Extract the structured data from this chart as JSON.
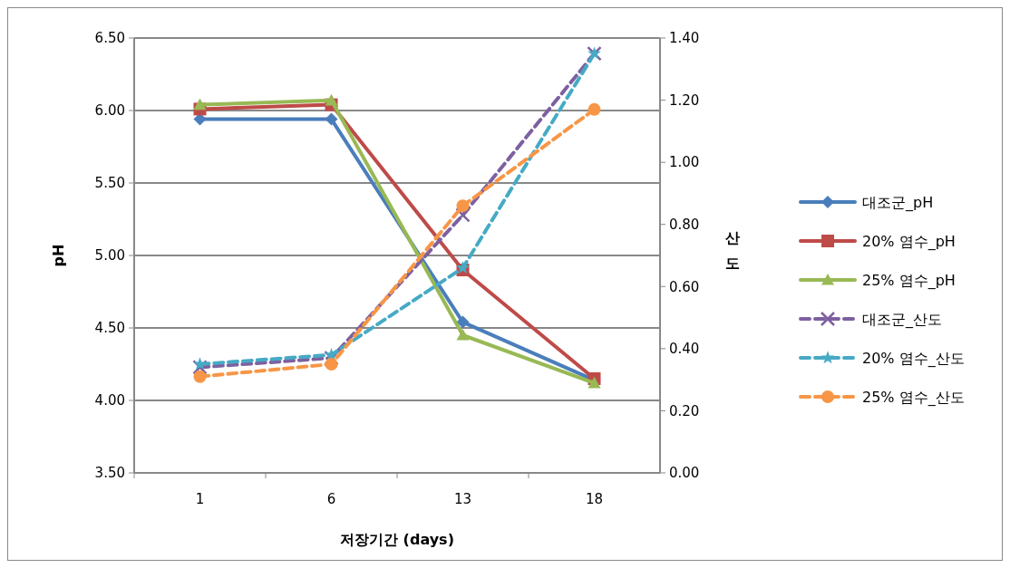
{
  "chart_data": {
    "type": "line",
    "categories": [
      "1",
      "6",
      "13",
      "18"
    ],
    "xlabel": "저장기간 (days)",
    "ylabel": "pH",
    "y2label": "산도",
    "ylim": [
      3.5,
      6.5
    ],
    "yticks": [
      {
        "value": 3.5,
        "label": "3.50"
      },
      {
        "value": 4,
        "label": "4.00"
      },
      {
        "value": 4.5,
        "label": "4.50"
      },
      {
        "value": 5,
        "label": "5.00"
      },
      {
        "value": 5.5,
        "label": "5.50"
      },
      {
        "value": 6,
        "label": "6.00"
      },
      {
        "value": 6.5,
        "label": "6.50"
      }
    ],
    "y2lim": [
      0,
      1.4
    ],
    "y2ticks": [
      {
        "value": 0,
        "label": "0.00"
      },
      {
        "value": 0.2,
        "label": "0.20"
      },
      {
        "value": 0.4,
        "label": "0.40"
      },
      {
        "value": 0.6,
        "label": "0.60"
      },
      {
        "value": 0.8,
        "label": "0.80"
      },
      {
        "value": 1,
        "label": "1.00"
      },
      {
        "value": 1.2,
        "label": "1.20"
      },
      {
        "value": 1.4,
        "label": "1.40"
      }
    ],
    "grid": "y",
    "legend": "right",
    "series": [
      {
        "name": "대조군_pH",
        "color": "#4a7ebb",
        "values": [
          5.94,
          5.94,
          4.54,
          4.14
        ],
        "marker": "diamond",
        "line_style": "solid"
      },
      {
        "name": "20% 염수_pH",
        "color": "#be4b48",
        "values": [
          6.01,
          6.04,
          4.9,
          4.15
        ],
        "marker": "square",
        "line_style": "solid"
      },
      {
        "name": "25% 염수_pH",
        "color": "#98b954",
        "values": [
          6.04,
          6.07,
          4.45,
          4.12
        ],
        "marker": "triangle",
        "line_style": "solid"
      },
      {
        "name": "대조군_산도",
        "color": "#7d60a0",
        "values": [
          0.34,
          0.37,
          0.83,
          1.35
        ],
        "marker": "cross",
        "line_style": "dashed",
        "axis": "y2"
      },
      {
        "name": "20% 염수_산도",
        "color": "#46aac5",
        "values": [
          0.35,
          0.38,
          0.66,
          1.35
        ],
        "marker": "star",
        "line_style": "dashed",
        "axis": "y2"
      },
      {
        "name": "25% 염수_산도",
        "color": "#f79646",
        "values": [
          0.31,
          0.35,
          0.86,
          1.17
        ],
        "marker": "circle",
        "line_style": "dashed",
        "axis": "y2"
      }
    ]
  }
}
